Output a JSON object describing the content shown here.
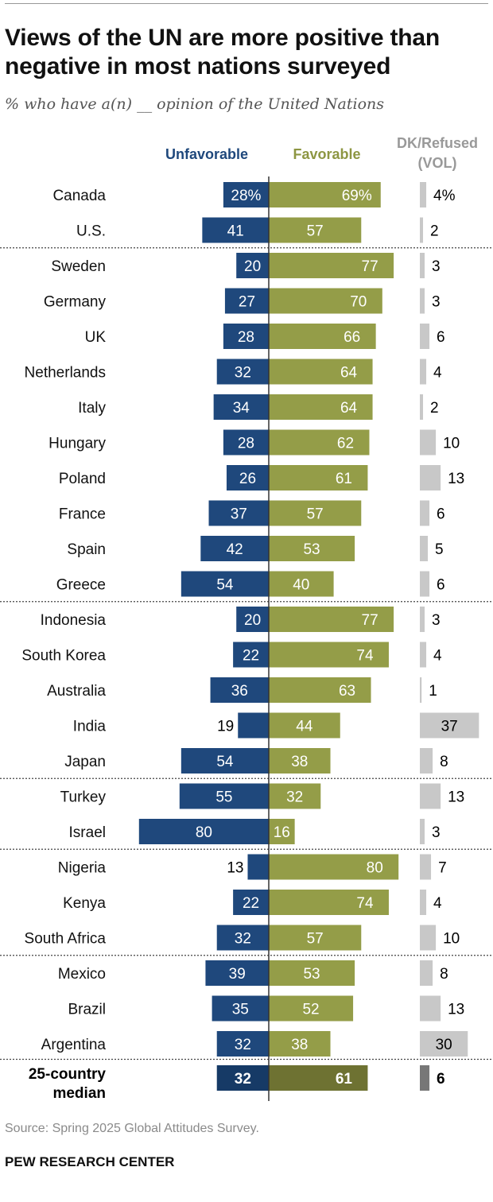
{
  "title": "Views of the UN are more positive than negative in most nations surveyed",
  "subtitle": "% who have a(n) __ opinion of the United Nations",
  "source": "Source: Spring 2025 Global Attitudes Survey.",
  "organization": "PEW RESEARCH CENTER",
  "colors": {
    "unfavorable": "#1f487c",
    "favorable": "#949d48",
    "dk": "#c8c8c8",
    "median_unfavorable": "#163a66",
    "median_favorable": "#6e7232",
    "median_dk": "#777777",
    "unfavorable_header": "#1f487c",
    "favorable_header": "#8d9642",
    "dk_header": "#999999"
  },
  "chart_data": {
    "type": "bar",
    "orientation": "horizontal-diverging",
    "headers": {
      "unfavorable": "Unfavorable",
      "favorable": "Favorable",
      "dk_line1": "DK/Refused",
      "dk_line2": "(VOL)"
    },
    "series": [
      {
        "name": "Unfavorable",
        "direction": "left"
      },
      {
        "name": "Favorable",
        "direction": "right"
      },
      {
        "name": "DK/Refused (VOL)",
        "direction": "right-separate"
      }
    ],
    "rows": [
      {
        "country": "Canada",
        "unfavorable": 28,
        "favorable": 69,
        "dk": 4,
        "u_label": "28%",
        "f_label": "69%",
        "d_label": "4%",
        "group": 1
      },
      {
        "country": "U.S.",
        "unfavorable": 41,
        "favorable": 57,
        "dk": 2,
        "u_label": "41",
        "f_label": "57",
        "d_label": "2",
        "group": 1
      },
      {
        "country": "Sweden",
        "unfavorable": 20,
        "favorable": 77,
        "dk": 3,
        "u_label": "20",
        "f_label": "77",
        "d_label": "3",
        "group": 2
      },
      {
        "country": "Germany",
        "unfavorable": 27,
        "favorable": 70,
        "dk": 3,
        "u_label": "27",
        "f_label": "70",
        "d_label": "3",
        "group": 2
      },
      {
        "country": "UK",
        "unfavorable": 28,
        "favorable": 66,
        "dk": 6,
        "u_label": "28",
        "f_label": "66",
        "d_label": "6",
        "group": 2
      },
      {
        "country": "Netherlands",
        "unfavorable": 32,
        "favorable": 64,
        "dk": 4,
        "u_label": "32",
        "f_label": "64",
        "d_label": "4",
        "group": 2
      },
      {
        "country": "Italy",
        "unfavorable": 34,
        "favorable": 64,
        "dk": 2,
        "u_label": "34",
        "f_label": "64",
        "d_label": "2",
        "group": 2
      },
      {
        "country": "Hungary",
        "unfavorable": 28,
        "favorable": 62,
        "dk": 10,
        "u_label": "28",
        "f_label": "62",
        "d_label": "10",
        "group": 2
      },
      {
        "country": "Poland",
        "unfavorable": 26,
        "favorable": 61,
        "dk": 13,
        "u_label": "26",
        "f_label": "61",
        "d_label": "13",
        "group": 2
      },
      {
        "country": "France",
        "unfavorable": 37,
        "favorable": 57,
        "dk": 6,
        "u_label": "37",
        "f_label": "57",
        "d_label": "6",
        "group": 2
      },
      {
        "country": "Spain",
        "unfavorable": 42,
        "favorable": 53,
        "dk": 5,
        "u_label": "42",
        "f_label": "53",
        "d_label": "5",
        "group": 2
      },
      {
        "country": "Greece",
        "unfavorable": 54,
        "favorable": 40,
        "dk": 6,
        "u_label": "54",
        "f_label": "40",
        "d_label": "6",
        "group": 2
      },
      {
        "country": "Indonesia",
        "unfavorable": 20,
        "favorable": 77,
        "dk": 3,
        "u_label": "20",
        "f_label": "77",
        "d_label": "3",
        "group": 3
      },
      {
        "country": "South Korea",
        "unfavorable": 22,
        "favorable": 74,
        "dk": 4,
        "u_label": "22",
        "f_label": "74",
        "d_label": "4",
        "group": 3
      },
      {
        "country": "Australia",
        "unfavorable": 36,
        "favorable": 63,
        "dk": 1,
        "u_label": "36",
        "f_label": "63",
        "d_label": "1",
        "group": 3
      },
      {
        "country": "India",
        "unfavorable": 19,
        "favorable": 44,
        "dk": 37,
        "u_label": "19",
        "f_label": "44",
        "d_label": "37",
        "group": 3
      },
      {
        "country": "Japan",
        "unfavorable": 54,
        "favorable": 38,
        "dk": 8,
        "u_label": "54",
        "f_label": "38",
        "d_label": "8",
        "group": 3
      },
      {
        "country": "Turkey",
        "unfavorable": 55,
        "favorable": 32,
        "dk": 13,
        "u_label": "55",
        "f_label": "32",
        "d_label": "13",
        "group": 4
      },
      {
        "country": "Israel",
        "unfavorable": 80,
        "favorable": 16,
        "dk": 3,
        "u_label": "80",
        "f_label": "16",
        "d_label": "3",
        "group": 4
      },
      {
        "country": "Nigeria",
        "unfavorable": 13,
        "favorable": 80,
        "dk": 7,
        "u_label": "13",
        "f_label": "80",
        "d_label": "7",
        "group": 5
      },
      {
        "country": "Kenya",
        "unfavorable": 22,
        "favorable": 74,
        "dk": 4,
        "u_label": "22",
        "f_label": "74",
        "d_label": "4",
        "group": 5
      },
      {
        "country": "South Africa",
        "unfavorable": 32,
        "favorable": 57,
        "dk": 10,
        "u_label": "32",
        "f_label": "57",
        "d_label": "10",
        "group": 5
      },
      {
        "country": "Mexico",
        "unfavorable": 39,
        "favorable": 53,
        "dk": 8,
        "u_label": "39",
        "f_label": "53",
        "d_label": "8",
        "group": 6
      },
      {
        "country": "Brazil",
        "unfavorable": 35,
        "favorable": 52,
        "dk": 13,
        "u_label": "35",
        "f_label": "52",
        "d_label": "13",
        "group": 6
      },
      {
        "country": "Argentina",
        "unfavorable": 32,
        "favorable": 38,
        "dk": 30,
        "u_label": "32",
        "f_label": "38",
        "d_label": "30",
        "group": 6
      }
    ],
    "median": {
      "label_line1": "25-country",
      "label_line2": "median",
      "unfavorable": 32,
      "favorable": 61,
      "dk": 6,
      "u_label": "32",
      "f_label": "61",
      "d_label": "6"
    }
  }
}
